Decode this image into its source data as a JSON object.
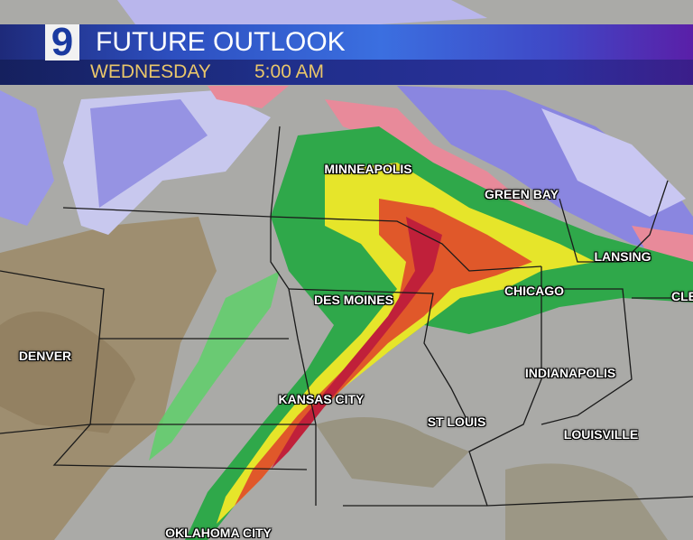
{
  "header": {
    "logo": "9",
    "title": "FUTURE OUTLOOK",
    "day": "WEDNESDAY",
    "time": "5:00 AM"
  },
  "cities": [
    {
      "name": "MINNEAPOLIS"
    },
    {
      "name": "GREEN BAY"
    },
    {
      "name": "LANSING"
    },
    {
      "name": "CLE"
    },
    {
      "name": "CHICAGO"
    },
    {
      "name": "DES MOINES"
    },
    {
      "name": "DENVER"
    },
    {
      "name": "KANSAS CITY"
    },
    {
      "name": "INDIANAPOLIS"
    },
    {
      "name": "ST LOUIS"
    },
    {
      "name": "LOUISVILLE"
    },
    {
      "name": "OKLAHOMA CITY"
    }
  ],
  "colors": {
    "rain_light": "#2fa84a",
    "rain_moderate": "#e6e52a",
    "rain_heavy": "#e0582a",
    "rain_extreme": "#c0203a",
    "snow": "#8a86e0",
    "mix": "#e88a9a",
    "banner": "#2d4fc0",
    "subtitle_text": "#e9c66a"
  }
}
